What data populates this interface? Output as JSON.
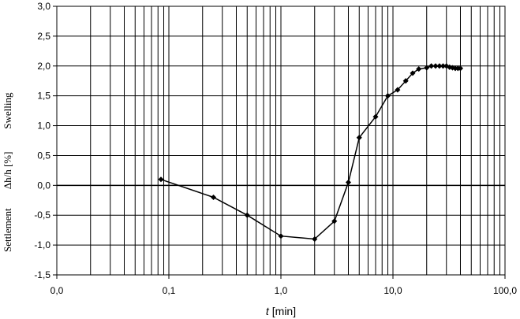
{
  "chart_data": {
    "type": "line",
    "x_scale": "log",
    "xlim": [
      0.01,
      100
    ],
    "ylim": [
      -1.5,
      3.0
    ],
    "grid": true,
    "x_ticks": [
      {
        "value": 0.01,
        "label": "0,0"
      },
      {
        "value": 0.1,
        "label": "0,1"
      },
      {
        "value": 1,
        "label": "1,0"
      },
      {
        "value": 10,
        "label": "10,0"
      },
      {
        "value": 100,
        "label": "100,0"
      }
    ],
    "y_ticks": [
      {
        "value": 3.0,
        "label": "3,0"
      },
      {
        "value": 2.5,
        "label": "2,5"
      },
      {
        "value": 2.0,
        "label": "2,0"
      },
      {
        "value": 1.5,
        "label": "1,5"
      },
      {
        "value": 1.0,
        "label": "1,0"
      },
      {
        "value": 0.5,
        "label": "0,5"
      },
      {
        "value": 0.0,
        "label": "0,0"
      },
      {
        "value": -0.5,
        "label": "-0,5"
      },
      {
        "value": -1.0,
        "label": "-1,0"
      },
      {
        "value": -1.5,
        "label": "-1,5"
      }
    ],
    "xlabel_var": "t",
    "xlabel_unit": "[min]",
    "ylabel_parts": [
      "Settlement",
      "Δh/h [%]",
      "Swelling"
    ],
    "series": [
      {
        "x": [
          0.085,
          0.25,
          0.5,
          1.0,
          2.0,
          3.0,
          4.0,
          5.0,
          7.0,
          9.0,
          11.0,
          13.0,
          15.0,
          17.0,
          20.0,
          22.0,
          24.0,
          26.0,
          28.0,
          30.0,
          32.0,
          34.0,
          36.0,
          38.0,
          40.0
        ],
        "y": [
          0.1,
          -0.2,
          -0.5,
          -0.85,
          -0.9,
          -0.6,
          0.05,
          0.8,
          1.15,
          1.5,
          1.6,
          1.75,
          1.88,
          1.95,
          1.97,
          2.0,
          2.0,
          2.0,
          2.0,
          2.0,
          1.98,
          1.97,
          1.96,
          1.96,
          1.96
        ],
        "color": "#000000"
      }
    ]
  }
}
